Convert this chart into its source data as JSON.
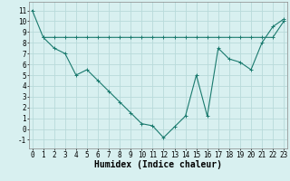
{
  "line1_x": [
    1,
    2,
    3,
    4,
    5,
    6,
    7,
    8,
    9,
    10,
    11,
    12,
    13,
    14,
    15,
    16,
    17,
    18,
    19,
    20,
    21,
    22,
    23
  ],
  "line1_y": [
    8.5,
    8.5,
    8.5,
    8.5,
    8.5,
    8.5,
    8.5,
    8.5,
    8.5,
    8.5,
    8.5,
    8.5,
    8.5,
    8.5,
    8.5,
    8.5,
    8.5,
    8.5,
    8.5,
    8.5,
    8.5,
    8.5,
    10.0
  ],
  "line2_x": [
    0,
    1,
    2,
    3,
    4,
    5,
    6,
    7,
    8,
    9,
    10,
    11,
    12,
    13,
    14,
    15,
    16,
    17,
    18,
    19,
    20,
    21,
    22,
    23
  ],
  "line2_y": [
    11.0,
    8.5,
    7.5,
    7.0,
    5.0,
    5.5,
    4.5,
    3.5,
    2.5,
    1.5,
    0.5,
    0.3,
    -0.8,
    0.2,
    1.2,
    5.0,
    1.2,
    7.5,
    6.5,
    6.2,
    5.5,
    8.0,
    9.5,
    10.2
  ],
  "color": "#1a7a6e",
  "bg_color": "#d8f0f0",
  "grid_color": "#b8dada",
  "xlabel": "Humidex (Indice chaleur)",
  "ylim": [
    -1.8,
    11.8
  ],
  "xlim": [
    -0.3,
    23.3
  ],
  "yticks": [
    -1,
    0,
    1,
    2,
    3,
    4,
    5,
    6,
    7,
    8,
    9,
    10,
    11
  ],
  "xticks": [
    0,
    1,
    2,
    3,
    4,
    5,
    6,
    7,
    8,
    9,
    10,
    11,
    12,
    13,
    14,
    15,
    16,
    17,
    18,
    19,
    20,
    21,
    22,
    23
  ],
  "font_size": 5.5,
  "xlabel_fontsize": 7.0,
  "linewidth": 0.8,
  "markersize": 2.5
}
